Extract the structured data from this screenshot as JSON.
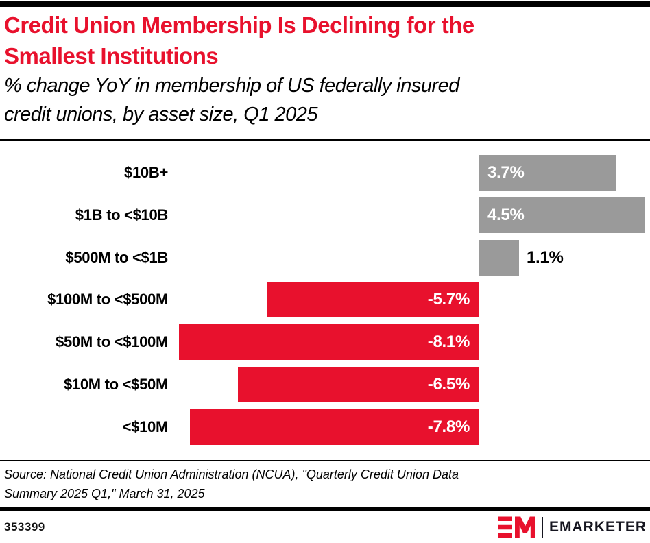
{
  "header": {
    "title_lines": [
      "Credit Union Membership Is Declining for the",
      "Smallest Institutions"
    ],
    "subtitle_lines": [
      "% change YoY in membership of US federally insured",
      "credit unions, by asset size, Q1 2025"
    ]
  },
  "chart_data": {
    "type": "bar",
    "orientation": "horizontal",
    "title": "Credit Union Membership Is Declining for the Smallest Institutions",
    "subtitle": "% change YoY in membership of US federally insured credit unions, by asset size, Q1 2025",
    "categories": [
      "$10B+",
      "$1B to <$10B",
      "$500M to <$1B",
      "$100M to <$500M",
      "$50M to <$100M",
      "$10M to <$50M",
      "<$10M"
    ],
    "values": [
      3.7,
      4.5,
      1.1,
      -5.7,
      -8.1,
      -6.5,
      -7.8
    ],
    "labels": [
      "3.7%",
      "4.5%",
      "1.1%",
      "-5.7%",
      "-8.1%",
      "-6.5%",
      "-7.8%"
    ],
    "unit": "%",
    "xlim": [
      -8.1,
      4.5
    ],
    "grid": false,
    "legend": false,
    "positive_color": "#9a9a9a",
    "negative_color": "#e8112d",
    "value_label_inside_color": "#ffffff",
    "value_label_outside_color": "#000000"
  },
  "footer": {
    "source_lines": [
      "Source: National Credit Union Administration (NCUA), \"Quarterly Credit Union Data",
      "Summary 2025 Q1,\" March 31, 2025"
    ],
    "chart_id": "353399",
    "brand": "EMARKETER",
    "brand_monogram": "EM",
    "brand_red": "#e8112d",
    "brand_dark": "#15151f"
  }
}
